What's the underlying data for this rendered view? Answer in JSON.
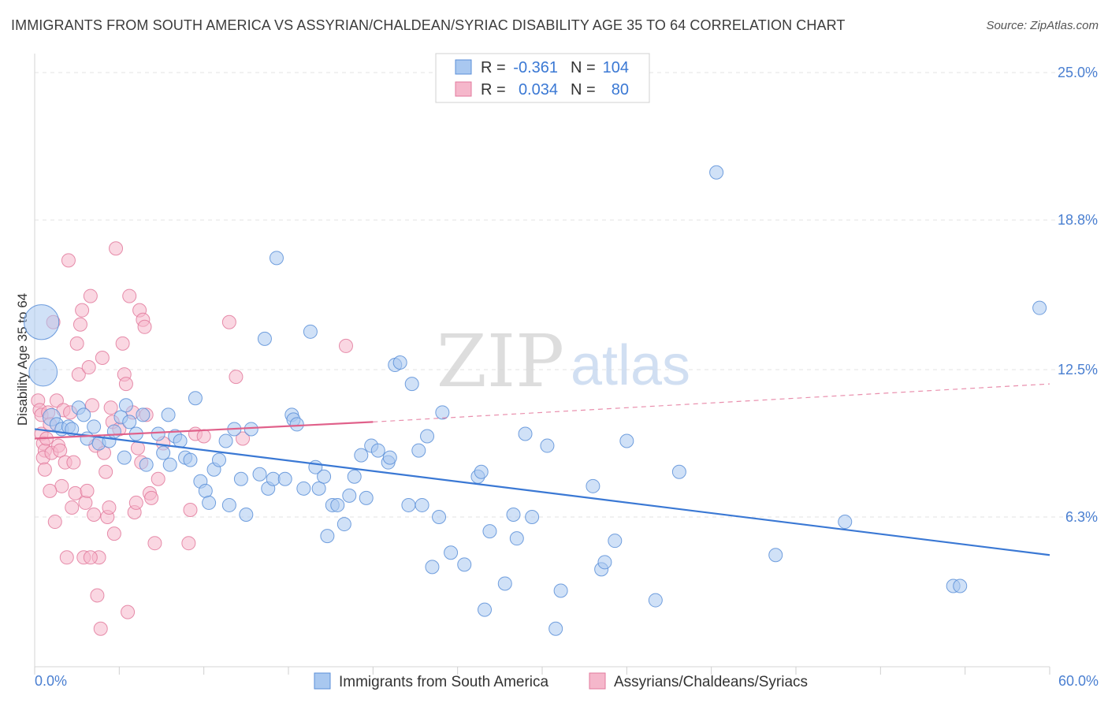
{
  "header": {
    "title": "IMMIGRANTS FROM SOUTH AMERICA VS ASSYRIAN/CHALDEAN/SYRIAC DISABILITY AGE 35 TO 64 CORRELATION CHART",
    "source": "Source: ZipAtlas.com"
  },
  "watermark": {
    "zip": "ZIP",
    "atlas": "atlas"
  },
  "colors": {
    "blue_fill": "#a9c8f0",
    "blue_stroke": "#5b8fd8",
    "blue_line": "#3a78d4",
    "pink_fill": "#f5b7cb",
    "pink_stroke": "#e27a9c",
    "pink_line": "#e0608a",
    "grid": "#e3e3e3",
    "tick_text": "#4a7fd1"
  },
  "stats": [
    {
      "r_label": "R =",
      "r_value": "-0.361",
      "n_label": "N =",
      "n_value": "104"
    },
    {
      "r_label": "R =",
      "r_value": "0.034",
      "n_label": "N =",
      "n_value": "80"
    }
  ],
  "chart_data": {
    "type": "scatter",
    "title": "IMMIGRANTS FROM SOUTH AMERICA VS ASSYRIAN/CHALDEAN/SYRIAC DISABILITY AGE 35 TO 64 CORRELATION CHART",
    "xlabel": "",
    "ylabel": "Disability Age 35 to 64",
    "xlim": [
      0,
      60
    ],
    "ylim": [
      0,
      25.8
    ],
    "x_tick_labels": [
      "0.0%",
      "60.0%"
    ],
    "y_ticks": [
      6.3,
      12.5,
      18.8,
      25.0
    ],
    "y_tick_labels": [
      "6.3%",
      "12.5%",
      "18.8%",
      "25.0%"
    ],
    "grid": true,
    "series": [
      {
        "name": "Immigrants from South America",
        "color": "blue",
        "r": -0.361,
        "n": 104,
        "trend": {
          "x": [
            0,
            60
          ],
          "y": [
            10.0,
            4.7
          ],
          "dashed_to": null
        },
        "points": [
          [
            0.4,
            14.5,
            2.6
          ],
          [
            0.5,
            12.4,
            2.1
          ],
          [
            1.0,
            10.5,
            1.3
          ],
          [
            1.3,
            10.2,
            1.0
          ],
          [
            1.6,
            10.0,
            1.0
          ],
          [
            2.0,
            10.1,
            1.0
          ],
          [
            2.2,
            10.0,
            1.0
          ],
          [
            2.6,
            10.9,
            1.0
          ],
          [
            2.9,
            10.6,
            1.0
          ],
          [
            3.1,
            9.6,
            1.0
          ],
          [
            3.5,
            10.1,
            1.0
          ],
          [
            3.8,
            9.4,
            1.0
          ],
          [
            4.4,
            9.5,
            1.0
          ],
          [
            4.7,
            9.9,
            1.0
          ],
          [
            5.1,
            10.5,
            1.0
          ],
          [
            5.4,
            11.0,
            1.0
          ],
          [
            5.6,
            10.3,
            1.0
          ],
          [
            5.3,
            8.8,
            1.0
          ],
          [
            6.0,
            9.8,
            1.0
          ],
          [
            6.4,
            10.6,
            1.0
          ],
          [
            6.6,
            8.5,
            1.0
          ],
          [
            7.3,
            9.8,
            1.0
          ],
          [
            7.6,
            9.0,
            1.0
          ],
          [
            7.9,
            10.6,
            1.0
          ],
          [
            8.0,
            8.5,
            1.0
          ],
          [
            8.3,
            9.7,
            1.0
          ],
          [
            8.6,
            9.5,
            1.0
          ],
          [
            8.9,
            8.8,
            1.0
          ],
          [
            9.2,
            8.7,
            1.0
          ],
          [
            9.5,
            11.3,
            1.0
          ],
          [
            9.8,
            7.8,
            1.0
          ],
          [
            10.1,
            7.4,
            1.0
          ],
          [
            10.3,
            6.9,
            1.0
          ],
          [
            10.6,
            8.3,
            1.0
          ],
          [
            10.9,
            8.7,
            1.0
          ],
          [
            11.3,
            9.5,
            1.0
          ],
          [
            11.5,
            6.8,
            1.0
          ],
          [
            11.8,
            10.0,
            1.0
          ],
          [
            12.2,
            7.9,
            1.0
          ],
          [
            12.5,
            6.4,
            1.0
          ],
          [
            12.8,
            10.0,
            1.0
          ],
          [
            13.3,
            8.1,
            1.0
          ],
          [
            13.6,
            13.8,
            1.0
          ],
          [
            13.8,
            7.5,
            1.0
          ],
          [
            14.1,
            7.9,
            1.0
          ],
          [
            14.3,
            17.2,
            1.0
          ],
          [
            14.8,
            7.9,
            1.0
          ],
          [
            15.2,
            10.6,
            1.0
          ],
          [
            15.3,
            10.4,
            1.0
          ],
          [
            15.5,
            10.2,
            1.0
          ],
          [
            15.9,
            7.5,
            1.0
          ],
          [
            16.3,
            14.1,
            1.0
          ],
          [
            16.6,
            8.4,
            1.0
          ],
          [
            16.8,
            7.5,
            1.0
          ],
          [
            17.1,
            8.0,
            1.0
          ],
          [
            17.3,
            5.5,
            1.0
          ],
          [
            17.6,
            6.8,
            1.0
          ],
          [
            17.9,
            6.8,
            1.0
          ],
          [
            18.3,
            6.0,
            1.0
          ],
          [
            18.6,
            7.2,
            1.0
          ],
          [
            18.9,
            8.0,
            1.0
          ],
          [
            19.3,
            8.9,
            1.0
          ],
          [
            19.6,
            7.1,
            1.0
          ],
          [
            19.9,
            9.3,
            1.0
          ],
          [
            20.3,
            9.1,
            1.0
          ],
          [
            20.9,
            8.6,
            1.0
          ],
          [
            21.3,
            12.7,
            1.0
          ],
          [
            21.6,
            12.8,
            1.0
          ],
          [
            22.1,
            6.8,
            1.0
          ],
          [
            22.3,
            11.9,
            1.0
          ],
          [
            22.7,
            9.1,
            1.0
          ],
          [
            22.9,
            6.8,
            1.0
          ],
          [
            23.2,
            9.7,
            1.0
          ],
          [
            23.5,
            4.2,
            1.0
          ],
          [
            23.9,
            6.3,
            1.0
          ],
          [
            24.1,
            10.7,
            1.0
          ],
          [
            24.6,
            4.8,
            1.0
          ],
          [
            25.4,
            4.3,
            1.0
          ],
          [
            26.2,
            8.0,
            1.0
          ],
          [
            26.4,
            8.2,
            1.0
          ],
          [
            26.6,
            2.4,
            1.0
          ],
          [
            26.9,
            5.7,
            1.0
          ],
          [
            27.8,
            3.5,
            1.0
          ],
          [
            28.3,
            6.4,
            1.0
          ],
          [
            28.5,
            5.4,
            1.0
          ],
          [
            29.0,
            9.8,
            1.0
          ],
          [
            29.4,
            6.3,
            1.0
          ],
          [
            30.3,
            9.3,
            1.0
          ],
          [
            30.8,
            1.6,
            1.0
          ],
          [
            31.1,
            3.2,
            1.0
          ],
          [
            33.0,
            7.6,
            1.0
          ],
          [
            33.5,
            4.1,
            1.0
          ],
          [
            33.7,
            4.4,
            1.0
          ],
          [
            34.3,
            5.3,
            1.0
          ],
          [
            35.0,
            9.5,
            1.0
          ],
          [
            36.7,
            2.8,
            1.0
          ],
          [
            40.3,
            20.8,
            1.0
          ],
          [
            43.8,
            4.7,
            1.0
          ],
          [
            47.9,
            6.1,
            1.0
          ],
          [
            54.3,
            3.4,
            1.0
          ],
          [
            54.7,
            3.4,
            1.0
          ],
          [
            59.4,
            15.1,
            1.0
          ],
          [
            38.1,
            8.2,
            1.0
          ],
          [
            21.0,
            8.8,
            1.0
          ]
        ]
      },
      {
        "name": "Assyrians/Chaldeans/Syriacs",
        "color": "pink",
        "r": 0.034,
        "n": 80,
        "trend": {
          "x": [
            0,
            20
          ],
          "y": [
            9.6,
            10.3
          ],
          "dashed_to": [
            60,
            11.9
          ]
        },
        "points": [
          [
            0.2,
            11.2,
            1.0
          ],
          [
            0.3,
            10.8,
            1.0
          ],
          [
            0.4,
            10.6,
            1.0
          ],
          [
            0.4,
            9.8,
            1.0
          ],
          [
            0.5,
            9.4,
            1.0
          ],
          [
            0.6,
            9.1,
            1.0
          ],
          [
            0.7,
            9.6,
            1.0
          ],
          [
            0.8,
            10.7,
            1.0
          ],
          [
            0.9,
            10.2,
            1.0
          ],
          [
            0.5,
            8.8,
            1.0
          ],
          [
            0.6,
            8.3,
            1.0
          ],
          [
            1.0,
            9.0,
            1.0
          ],
          [
            1.1,
            14.5,
            1.0
          ],
          [
            1.3,
            11.2,
            1.0
          ],
          [
            1.4,
            9.3,
            1.0
          ],
          [
            1.5,
            9.1,
            1.0
          ],
          [
            1.6,
            7.6,
            1.0
          ],
          [
            1.7,
            10.8,
            1.0
          ],
          [
            1.8,
            8.6,
            1.0
          ],
          [
            1.2,
            6.1,
            1.0
          ],
          [
            2.0,
            17.1,
            1.0
          ],
          [
            2.1,
            10.7,
            1.0
          ],
          [
            2.2,
            6.7,
            1.0
          ],
          [
            2.3,
            8.6,
            1.0
          ],
          [
            2.4,
            7.3,
            1.0
          ],
          [
            2.5,
            13.6,
            1.0
          ],
          [
            2.6,
            12.3,
            1.0
          ],
          [
            2.7,
            14.4,
            1.0
          ],
          [
            2.8,
            15.0,
            1.0
          ],
          [
            2.9,
            4.6,
            1.0
          ],
          [
            3.0,
            6.9,
            1.0
          ],
          [
            3.1,
            7.4,
            1.0
          ],
          [
            3.2,
            12.6,
            1.0
          ],
          [
            3.3,
            15.6,
            1.0
          ],
          [
            3.4,
            11.0,
            1.0
          ],
          [
            3.5,
            6.4,
            1.0
          ],
          [
            3.6,
            9.3,
            1.0
          ],
          [
            3.7,
            3.0,
            1.0
          ],
          [
            3.8,
            4.6,
            1.0
          ],
          [
            3.9,
            1.6,
            1.0
          ],
          [
            4.0,
            13.0,
            1.0
          ],
          [
            4.1,
            9.0,
            1.0
          ],
          [
            4.2,
            8.2,
            1.0
          ],
          [
            4.3,
            6.3,
            1.0
          ],
          [
            4.4,
            6.7,
            1.0
          ],
          [
            4.5,
            10.9,
            1.0
          ],
          [
            4.6,
            10.3,
            1.0
          ],
          [
            4.7,
            5.6,
            1.0
          ],
          [
            4.8,
            17.6,
            1.0
          ],
          [
            5.0,
            10.0,
            1.0
          ],
          [
            5.2,
            13.6,
            1.0
          ],
          [
            5.3,
            12.3,
            1.0
          ],
          [
            5.4,
            11.9,
            1.0
          ],
          [
            5.5,
            2.3,
            1.0
          ],
          [
            5.6,
            15.6,
            1.0
          ],
          [
            5.8,
            10.7,
            1.0
          ],
          [
            5.9,
            6.5,
            1.0
          ],
          [
            6.0,
            6.9,
            1.0
          ],
          [
            6.1,
            9.2,
            1.0
          ],
          [
            6.2,
            15.0,
            1.0
          ],
          [
            6.3,
            8.6,
            1.0
          ],
          [
            6.4,
            14.6,
            1.0
          ],
          [
            6.5,
            14.3,
            1.0
          ],
          [
            6.6,
            10.6,
            1.0
          ],
          [
            6.8,
            7.3,
            1.0
          ],
          [
            6.9,
            7.1,
            1.0
          ],
          [
            7.1,
            5.2,
            1.0
          ],
          [
            7.3,
            7.9,
            1.0
          ],
          [
            7.6,
            9.4,
            1.0
          ],
          [
            9.1,
            5.2,
            1.0
          ],
          [
            9.2,
            6.6,
            1.0
          ],
          [
            9.5,
            9.8,
            1.0
          ],
          [
            10.0,
            9.7,
            1.0
          ],
          [
            11.5,
            14.5,
            1.0
          ],
          [
            11.9,
            12.2,
            1.0
          ],
          [
            12.3,
            9.6,
            1.0
          ],
          [
            18.4,
            13.5,
            1.0
          ],
          [
            1.9,
            4.6,
            1.0
          ],
          [
            0.9,
            7.4,
            1.0
          ],
          [
            3.3,
            4.6,
            1.0
          ]
        ]
      }
    ]
  },
  "legend": {
    "items": [
      {
        "label": "Immigrants from South America"
      },
      {
        "label": "Assyrians/Chaldeans/Syriacs"
      }
    ]
  }
}
